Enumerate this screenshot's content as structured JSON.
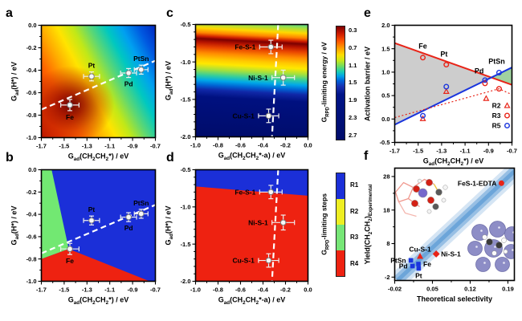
{
  "figure": {
    "background": "#ffffff",
    "panel_letters": [
      "a",
      "b",
      "c",
      "d",
      "e",
      "f"
    ]
  },
  "colors": {
    "marker_red": "#e82418",
    "marker_blue": "#1a35dd",
    "phase_blue": "#1b2fd8",
    "phase_green": "#72e872",
    "phase_red": "#ee2211",
    "phase_yellow": "#eeee22",
    "gray_region": "#c8c8c8",
    "green_region": "#8fca8f",
    "parity_band": "#5b9bd5",
    "dashed_guide": "#ffffff"
  },
  "chart_data": [
    {
      "panel": "a",
      "letter": "a",
      "type": "heatmap",
      "xlabel": "G_{ad}(CH_{2}CH_{2}*) / eV",
      "ylabel": "G_{ad}(H*) / eV",
      "xlim": [
        -1.7,
        -0.7
      ],
      "ylim": [
        -1.0,
        0.0
      ],
      "xticks": [
        "-1.7",
        "-1.5",
        "-1.3",
        "-1.1",
        "-0.9",
        "-0.7"
      ],
      "yticks": [
        "0.0",
        "-0.2",
        "-0.4",
        "-0.6",
        "-0.8",
        "-1.0"
      ],
      "bg": "bg-heat-a",
      "colormap_note": "rainbow 2D map, dark-red minimum near Fe, blue at top-right",
      "dashed_line": [
        [
          -1.7,
          -0.75
        ],
        [
          -0.7,
          -0.315
        ]
      ],
      "points": [
        {
          "label": "Fe",
          "x": -1.45,
          "y": -0.71,
          "xerr": 0.08,
          "yerr": 0.05,
          "anchor": "below"
        },
        {
          "label": "Pt",
          "x": -1.26,
          "y": -0.455,
          "xerr": 0.07,
          "yerr": 0.04,
          "anchor": "above"
        },
        {
          "label": "Pd",
          "x": -0.935,
          "y": -0.425,
          "xerr": 0.07,
          "yerr": 0.04,
          "anchor": "below"
        },
        {
          "label": "PtSn",
          "x": -0.825,
          "y": -0.395,
          "xerr": 0.06,
          "yerr": 0.04,
          "anchor": "above"
        }
      ],
      "point_label_color": "#000000"
    },
    {
      "panel": "b",
      "letter": "b",
      "type": "phase-map",
      "xlabel": "G_{ad}(CH_{2}CH_{2}*) / eV",
      "ylabel": "G_{ad}(H*) / eV",
      "xlim": [
        -1.7,
        -0.7
      ],
      "ylim": [
        -1.0,
        0.0
      ],
      "xticks": [
        "-1.7",
        "-1.5",
        "-1.3",
        "-1.1",
        "-0.9",
        "-0.7"
      ],
      "yticks": [
        "0.0",
        "-0.2",
        "-0.4",
        "-0.6",
        "-0.8",
        "-1.0"
      ],
      "base_color": "#1b2fd8",
      "regions": [
        {
          "name": "green-region",
          "color": "#72e872",
          "pts": [
            [
              -1.7,
              0.0
            ],
            [
              -1.61,
              0.0
            ],
            [
              -1.46,
              -0.71
            ],
            [
              -1.7,
              -0.8
            ]
          ]
        },
        {
          "name": "red-region",
          "color": "#ee2211",
          "pts": [
            [
              -1.7,
              -0.8
            ],
            [
              -1.46,
              -0.71
            ],
            [
              -0.75,
              -1.0
            ],
            [
              -1.7,
              -1.0
            ]
          ]
        }
      ],
      "dashed_line": [
        [
          -1.7,
          -0.75
        ],
        [
          -0.7,
          -0.315
        ]
      ],
      "points": [
        {
          "label": "Fe",
          "x": -1.45,
          "y": -0.71,
          "xerr": 0.08,
          "yerr": 0.05,
          "anchor": "below"
        },
        {
          "label": "Pt",
          "x": -1.26,
          "y": -0.455,
          "xerr": 0.07,
          "yerr": 0.04,
          "anchor": "above"
        },
        {
          "label": "Pd",
          "x": -0.935,
          "y": -0.425,
          "xerr": 0.07,
          "yerr": 0.04,
          "anchor": "below"
        },
        {
          "label": "PtSn",
          "x": -0.825,
          "y": -0.395,
          "xerr": 0.06,
          "yerr": 0.04,
          "anchor": "above"
        }
      ],
      "point_label_color": "#ffffff"
    },
    {
      "panel": "c",
      "letter": "c",
      "type": "heatmap",
      "xlabel": "G_{ad}(CH_{2}CH_{2}*-a) / eV",
      "ylabel": "G_{ad}(H*) / eV",
      "xlim": [
        -1.0,
        0.0
      ],
      "ylim": [
        -2.0,
        -0.5
      ],
      "xticks": [
        "-1.0",
        "-0.8",
        "-0.6",
        "-0.4",
        "-0.2",
        "0.0"
      ],
      "yticks": [
        "-0.5",
        "-1.0",
        "-1.5",
        "-2.0"
      ],
      "bg": "bg-heat-c",
      "colormap_note": "banded map: dark-red ridge near y=-0.75 sloping down-right, navy below y=-1.35",
      "dashed_line": [
        [
          -0.265,
          -0.5
        ],
        [
          -0.32,
          -2.0
        ]
      ],
      "points": [
        {
          "label": "Fe-S-1",
          "x": -0.33,
          "y": -0.8,
          "xerr": 0.1,
          "yerr": 0.09,
          "anchor": "left"
        },
        {
          "label": "Ni-S-1",
          "x": -0.22,
          "y": -1.21,
          "xerr": 0.1,
          "yerr": 0.1,
          "anchor": "left"
        },
        {
          "label": "Cu-S-1",
          "x": -0.35,
          "y": -1.72,
          "xerr": 0.09,
          "yerr": 0.09,
          "anchor": "left"
        }
      ],
      "point_label_color": "#ffffff"
    },
    {
      "panel": "d",
      "letter": "d",
      "type": "phase-map",
      "xlabel": "G_{ad}(CH_{2}CH_{2}*-a) / eV",
      "ylabel": "G_{ad}(H*) / eV",
      "xlim": [
        -1.0,
        0.0
      ],
      "ylim": [
        -2.0,
        -0.5
      ],
      "xticks": [
        "-1.0",
        "-0.8",
        "-0.6",
        "-0.4",
        "-0.2",
        "0.0"
      ],
      "yticks": [
        "-0.5",
        "-1.0",
        "-1.5",
        "-2.0"
      ],
      "base_color": "#ee2211",
      "regions": [
        {
          "name": "blue-region",
          "color": "#1b2fd8",
          "pts": [
            [
              -1.0,
              -0.5
            ],
            [
              0.0,
              -0.5
            ],
            [
              0.0,
              -0.85
            ],
            [
              -1.0,
              -0.725
            ]
          ]
        }
      ],
      "dashed_line": [
        [
          -0.265,
          -0.5
        ],
        [
          -0.32,
          -2.0
        ]
      ],
      "points": [
        {
          "label": "Fe-S-1",
          "x": -0.33,
          "y": -0.8,
          "xerr": 0.1,
          "yerr": 0.09,
          "anchor": "left"
        },
        {
          "label": "Ni-S-1",
          "x": -0.22,
          "y": -1.21,
          "xerr": 0.1,
          "yerr": 0.1,
          "anchor": "left"
        },
        {
          "label": "Cu-S-1",
          "x": -0.35,
          "y": -1.72,
          "xerr": 0.09,
          "yerr": 0.09,
          "anchor": "left"
        }
      ],
      "point_label_color": "#ffffff"
    },
    {
      "panel": "e",
      "letter": "e",
      "type": "scatter",
      "xlabel": "G_{ad}(CH_{2}CH_{2}*) / eV",
      "ylabel": "Activation barrier / eV",
      "xlim": [
        -1.7,
        -0.7
      ],
      "ylim": [
        -0.5,
        2.0
      ],
      "xticks": [
        "-1.7",
        "-1.5",
        "-1.3",
        "-1.1",
        "-0.9",
        "-0.7"
      ],
      "yticks": [
        "2.0",
        "1.5",
        "1.0",
        "0.5",
        "0.0",
        "-0.5"
      ],
      "regions": [
        {
          "name": "gray-wedge",
          "color": "#c8c8c8",
          "opacity": 0.9,
          "pts": [
            [
              -1.7,
              1.62
            ],
            [
              -0.877,
              0.885
            ],
            [
              -1.7,
              -0.12
            ]
          ]
        },
        {
          "name": "green-wedge",
          "color": "#8fca8f",
          "opacity": 0.85,
          "pts": [
            [
              -0.877,
              0.885
            ],
            [
              -0.7,
              1.1
            ],
            [
              -0.7,
              0.73
            ]
          ]
        }
      ],
      "lines": [
        {
          "name": "red-trend",
          "color": "#e82418",
          "style": "solid",
          "pts": [
            [
              -1.7,
              1.62
            ],
            [
              -0.7,
              0.73
            ]
          ]
        },
        {
          "name": "blue-trend",
          "color": "#1a35dd",
          "style": "solid",
          "pts": [
            [
              -1.7,
              -0.12
            ],
            [
              -0.7,
              1.1
            ]
          ]
        },
        {
          "name": "red-dotted",
          "color": "#e82418",
          "style": "dotted",
          "pts": [
            [
              -1.7,
              0.03
            ],
            [
              -0.81,
              0.645
            ],
            [
              -0.7,
              0.52
            ]
          ]
        }
      ],
      "series": [
        {
          "name": "R2",
          "marker": "triangle",
          "color": "#e82418",
          "points": [
            [
              -1.46,
              0.01
            ],
            [
              -1.26,
              0.59
            ],
            [
              -0.92,
              0.44
            ]
          ]
        },
        {
          "name": "R3",
          "marker": "circle",
          "color": "#e82418",
          "points": [
            [
              -1.46,
              1.31
            ],
            [
              -1.26,
              1.16
            ],
            [
              -0.93,
              0.76
            ],
            [
              -0.81,
              0.645
            ]
          ]
        },
        {
          "name": "R5",
          "marker": "circle",
          "color": "#1a35dd",
          "points": [
            [
              -1.46,
              0.07
            ],
            [
              -1.26,
              0.69
            ],
            [
              -0.93,
              0.83
            ],
            [
              -0.81,
              0.99
            ]
          ]
        }
      ],
      "annotations": [
        {
          "text": "Fe",
          "x": -1.46,
          "y": 1.5
        },
        {
          "text": "Pt",
          "x": -1.28,
          "y": 1.33
        },
        {
          "text": "Pd",
          "x": -0.98,
          "y": 0.97
        },
        {
          "text": "PtSn",
          "x": -0.83,
          "y": 1.18
        }
      ],
      "legend": [
        {
          "label": "R2",
          "marker": "triangle",
          "color": "#e82418"
        },
        {
          "label": "R3",
          "marker": "circle",
          "color": "#e82418"
        },
        {
          "label": "R5",
          "marker": "circle",
          "color": "#1a35dd"
        }
      ]
    },
    {
      "panel": "f",
      "letter": "f",
      "type": "scatter",
      "xlabel": "Theoretical selectivity",
      "ylabel": "Yield(CH_{2}CH_{2})_{Experimental}",
      "xlim": [
        -0.02,
        0.202
      ],
      "ylim": [
        -3,
        30.5
      ],
      "xticks": [
        "-0.02",
        "0.05",
        "0.12",
        "0.19"
      ],
      "yticks": [
        "28",
        "18",
        "8",
        "-2"
      ],
      "band": {
        "name": "parity-band",
        "pts": [
          [
            -0.015,
            -3
          ],
          [
            0.205,
            30
          ]
        ],
        "color": "#5b9bd5"
      },
      "points2": [
        {
          "label": "FeS-1-EDTA",
          "x": 0.178,
          "y": 26.0,
          "marker": "circle",
          "color": "#e82418",
          "anchor": "left"
        },
        {
          "label": "Ni-S-1",
          "x": 0.057,
          "y": 4.9,
          "marker": "diamond",
          "color": "#e82418",
          "anchor": "right"
        },
        {
          "label": "Cu-S-1",
          "x": 0.027,
          "y": 4.2,
          "marker": "triangle",
          "color": "#e82418",
          "anchor": "above"
        },
        {
          "label": "PtSn",
          "x": 0.01,
          "y": 3.0,
          "marker": "square",
          "color": "#1a35dd",
          "anchor": "left"
        },
        {
          "label": "Fe",
          "x": 0.024,
          "y": 1.9,
          "marker": "square",
          "color": "#1a35dd",
          "anchor": "right"
        },
        {
          "label": "Pd",
          "x": 0.013,
          "y": 1.3,
          "marker": "square",
          "color": "#1a35dd",
          "anchor": "left"
        },
        {
          "label": "Pt",
          "x": 0.0245,
          "y": 0.6,
          "marker": "square",
          "color": "#1a35dd",
          "anchor": "below"
        }
      ],
      "insets": [
        "zeolite-molecule",
        "metal-cluster-molecule"
      ]
    }
  ],
  "colorbars": {
    "energy": {
      "label": "G_{RPD}-limiting energy / eV",
      "ticks": [
        "0.3",
        "0.7",
        "1.1",
        "1.5",
        "1.9",
        "2.3",
        "2.7"
      ]
    },
    "steps": {
      "label": "G_{RPD}-limiting steps",
      "blocks": [
        {
          "label": "R1",
          "color": "#1b2fd8"
        },
        {
          "label": "R2",
          "color": "#eeee22"
        },
        {
          "label": "R3",
          "color": "#77e677"
        },
        {
          "label": "R4",
          "color": "#ee2211"
        }
      ]
    }
  }
}
